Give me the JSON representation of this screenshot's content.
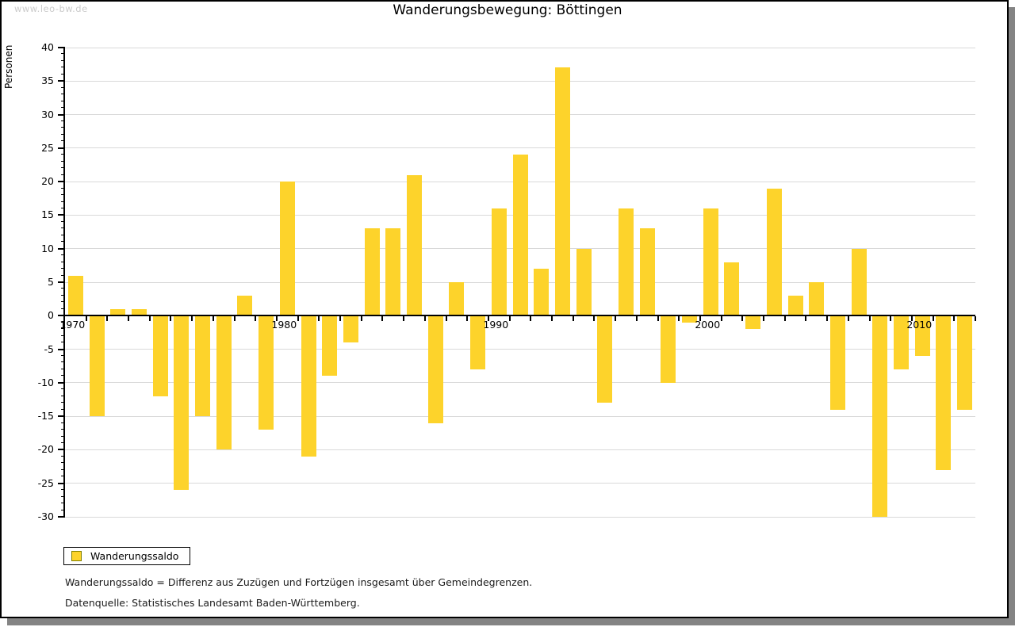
{
  "watermark": "www.leo-bw.de",
  "title": "Wanderungsbewegung: Böttingen",
  "y_axis_title": "Personen",
  "legend": {
    "label": "Wanderungssaldo",
    "swatch_color": "#fdd32b"
  },
  "footnotes": {
    "definition": "Wanderungssaldo = Differenz aus Zuzügen und Fortzügen insgesamt über Gemeindegrenzen.",
    "source": "Datenquelle: Statistisches Landesamt Baden-Württemberg."
  },
  "colors": {
    "bar": "#fdd32b",
    "grid": "#d9d9d9",
    "axis": "#000000",
    "watermark_text": "#cccccc",
    "frame_shadow": "#848484",
    "legend_swatch_border": "#808000"
  },
  "chart_data": {
    "type": "bar",
    "title": "Wanderungsbewegung: Böttingen",
    "xlabel": "",
    "ylabel": "Personen",
    "ylim": [
      -30,
      40
    ],
    "ytick_step": 5,
    "y_minor_tick_step": 1,
    "grid": true,
    "legend_position": "bottom-left",
    "bar_color": "#fdd32b",
    "xtick_labeled_years": [
      1970,
      1980,
      1990,
      2000,
      2010
    ],
    "categories": [
      1970,
      1971,
      1972,
      1973,
      1974,
      1975,
      1976,
      1977,
      1978,
      1979,
      1980,
      1981,
      1982,
      1983,
      1984,
      1985,
      1986,
      1987,
      1988,
      1989,
      1990,
      1991,
      1992,
      1993,
      1994,
      1995,
      1996,
      1997,
      1998,
      1999,
      2000,
      2001,
      2002,
      2003,
      2004,
      2005,
      2006,
      2007,
      2008,
      2009,
      2010,
      2011,
      2012
    ],
    "series": [
      {
        "name": "Wanderungssaldo",
        "values": [
          6,
          -15,
          1,
          1,
          -12,
          -26,
          -15,
          -20,
          3,
          -17,
          20,
          -21,
          -9,
          -4,
          13,
          13,
          21,
          -16,
          5,
          -8,
          16,
          24,
          7,
          37,
          10,
          -13,
          16,
          13,
          -10,
          -1,
          16,
          8,
          -2,
          19,
          3,
          5,
          -14,
          10,
          -30,
          -8,
          -6,
          -23,
          -14
        ]
      }
    ]
  }
}
